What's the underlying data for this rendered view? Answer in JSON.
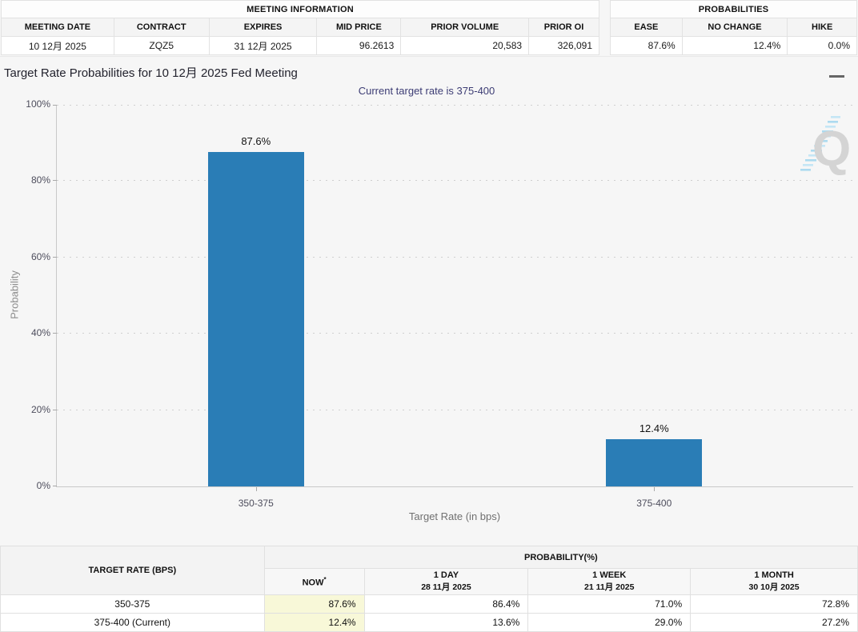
{
  "meeting_information": {
    "title": "MEETING INFORMATION",
    "columns": [
      "MEETING DATE",
      "CONTRACT",
      "EXPIRES",
      "MID PRICE",
      "PRIOR VOLUME",
      "PRIOR OI"
    ],
    "values": [
      "10 12月 2025",
      "ZQZ5",
      "31 12月 2025",
      "96.2613",
      "20,583",
      "326,091"
    ]
  },
  "probabilities": {
    "title": "PROBABILITIES",
    "columns": [
      "EASE",
      "NO CHANGE",
      "HIKE"
    ],
    "values": [
      "87.6%",
      "12.4%",
      "0.0%"
    ]
  },
  "chart_data": {
    "type": "bar",
    "title": "Target Rate Probabilities for 10 12月 2025 Fed Meeting",
    "subtitle": "Current target rate is 375-400",
    "categories": [
      "350-375",
      "375-400"
    ],
    "values": [
      87.6,
      12.4
    ],
    "value_labels": [
      "87.6%",
      "12.4%"
    ],
    "xlabel": "Target Rate (in bps)",
    "ylabel": "Probability",
    "ylim": [
      0,
      100
    ],
    "yticks": [
      "0%",
      "20%",
      "40%",
      "60%",
      "80%",
      "100%"
    ],
    "grid": "dotted-horizontal",
    "legend": "none",
    "bar_color": "#2a7db6",
    "watermark_letter": "Q"
  },
  "probability_table": {
    "row_header": "TARGET RATE (BPS)",
    "group_header": "PROBABILITY(%)",
    "columns": [
      {
        "label": "NOW",
        "sup": "*",
        "sub": ""
      },
      {
        "label": "1 DAY",
        "sup": "",
        "sub": "28 11月 2025"
      },
      {
        "label": "1 WEEK",
        "sup": "",
        "sub": "21 11月 2025"
      },
      {
        "label": "1 MONTH",
        "sup": "",
        "sub": "30 10月 2025"
      }
    ],
    "rows": [
      {
        "label": "350-375",
        "cells": [
          "87.6%",
          "86.4%",
          "71.0%",
          "72.8%"
        ]
      },
      {
        "label": "375-400 (Current)",
        "cells": [
          "12.4%",
          "13.6%",
          "29.0%",
          "27.2%"
        ]
      }
    ]
  },
  "colors": {
    "bar": "#2a7db6",
    "now_column_bg": "#f8f8d8",
    "subtitle_text": "#3c3c74",
    "page_bg": "#f6f6f6"
  }
}
